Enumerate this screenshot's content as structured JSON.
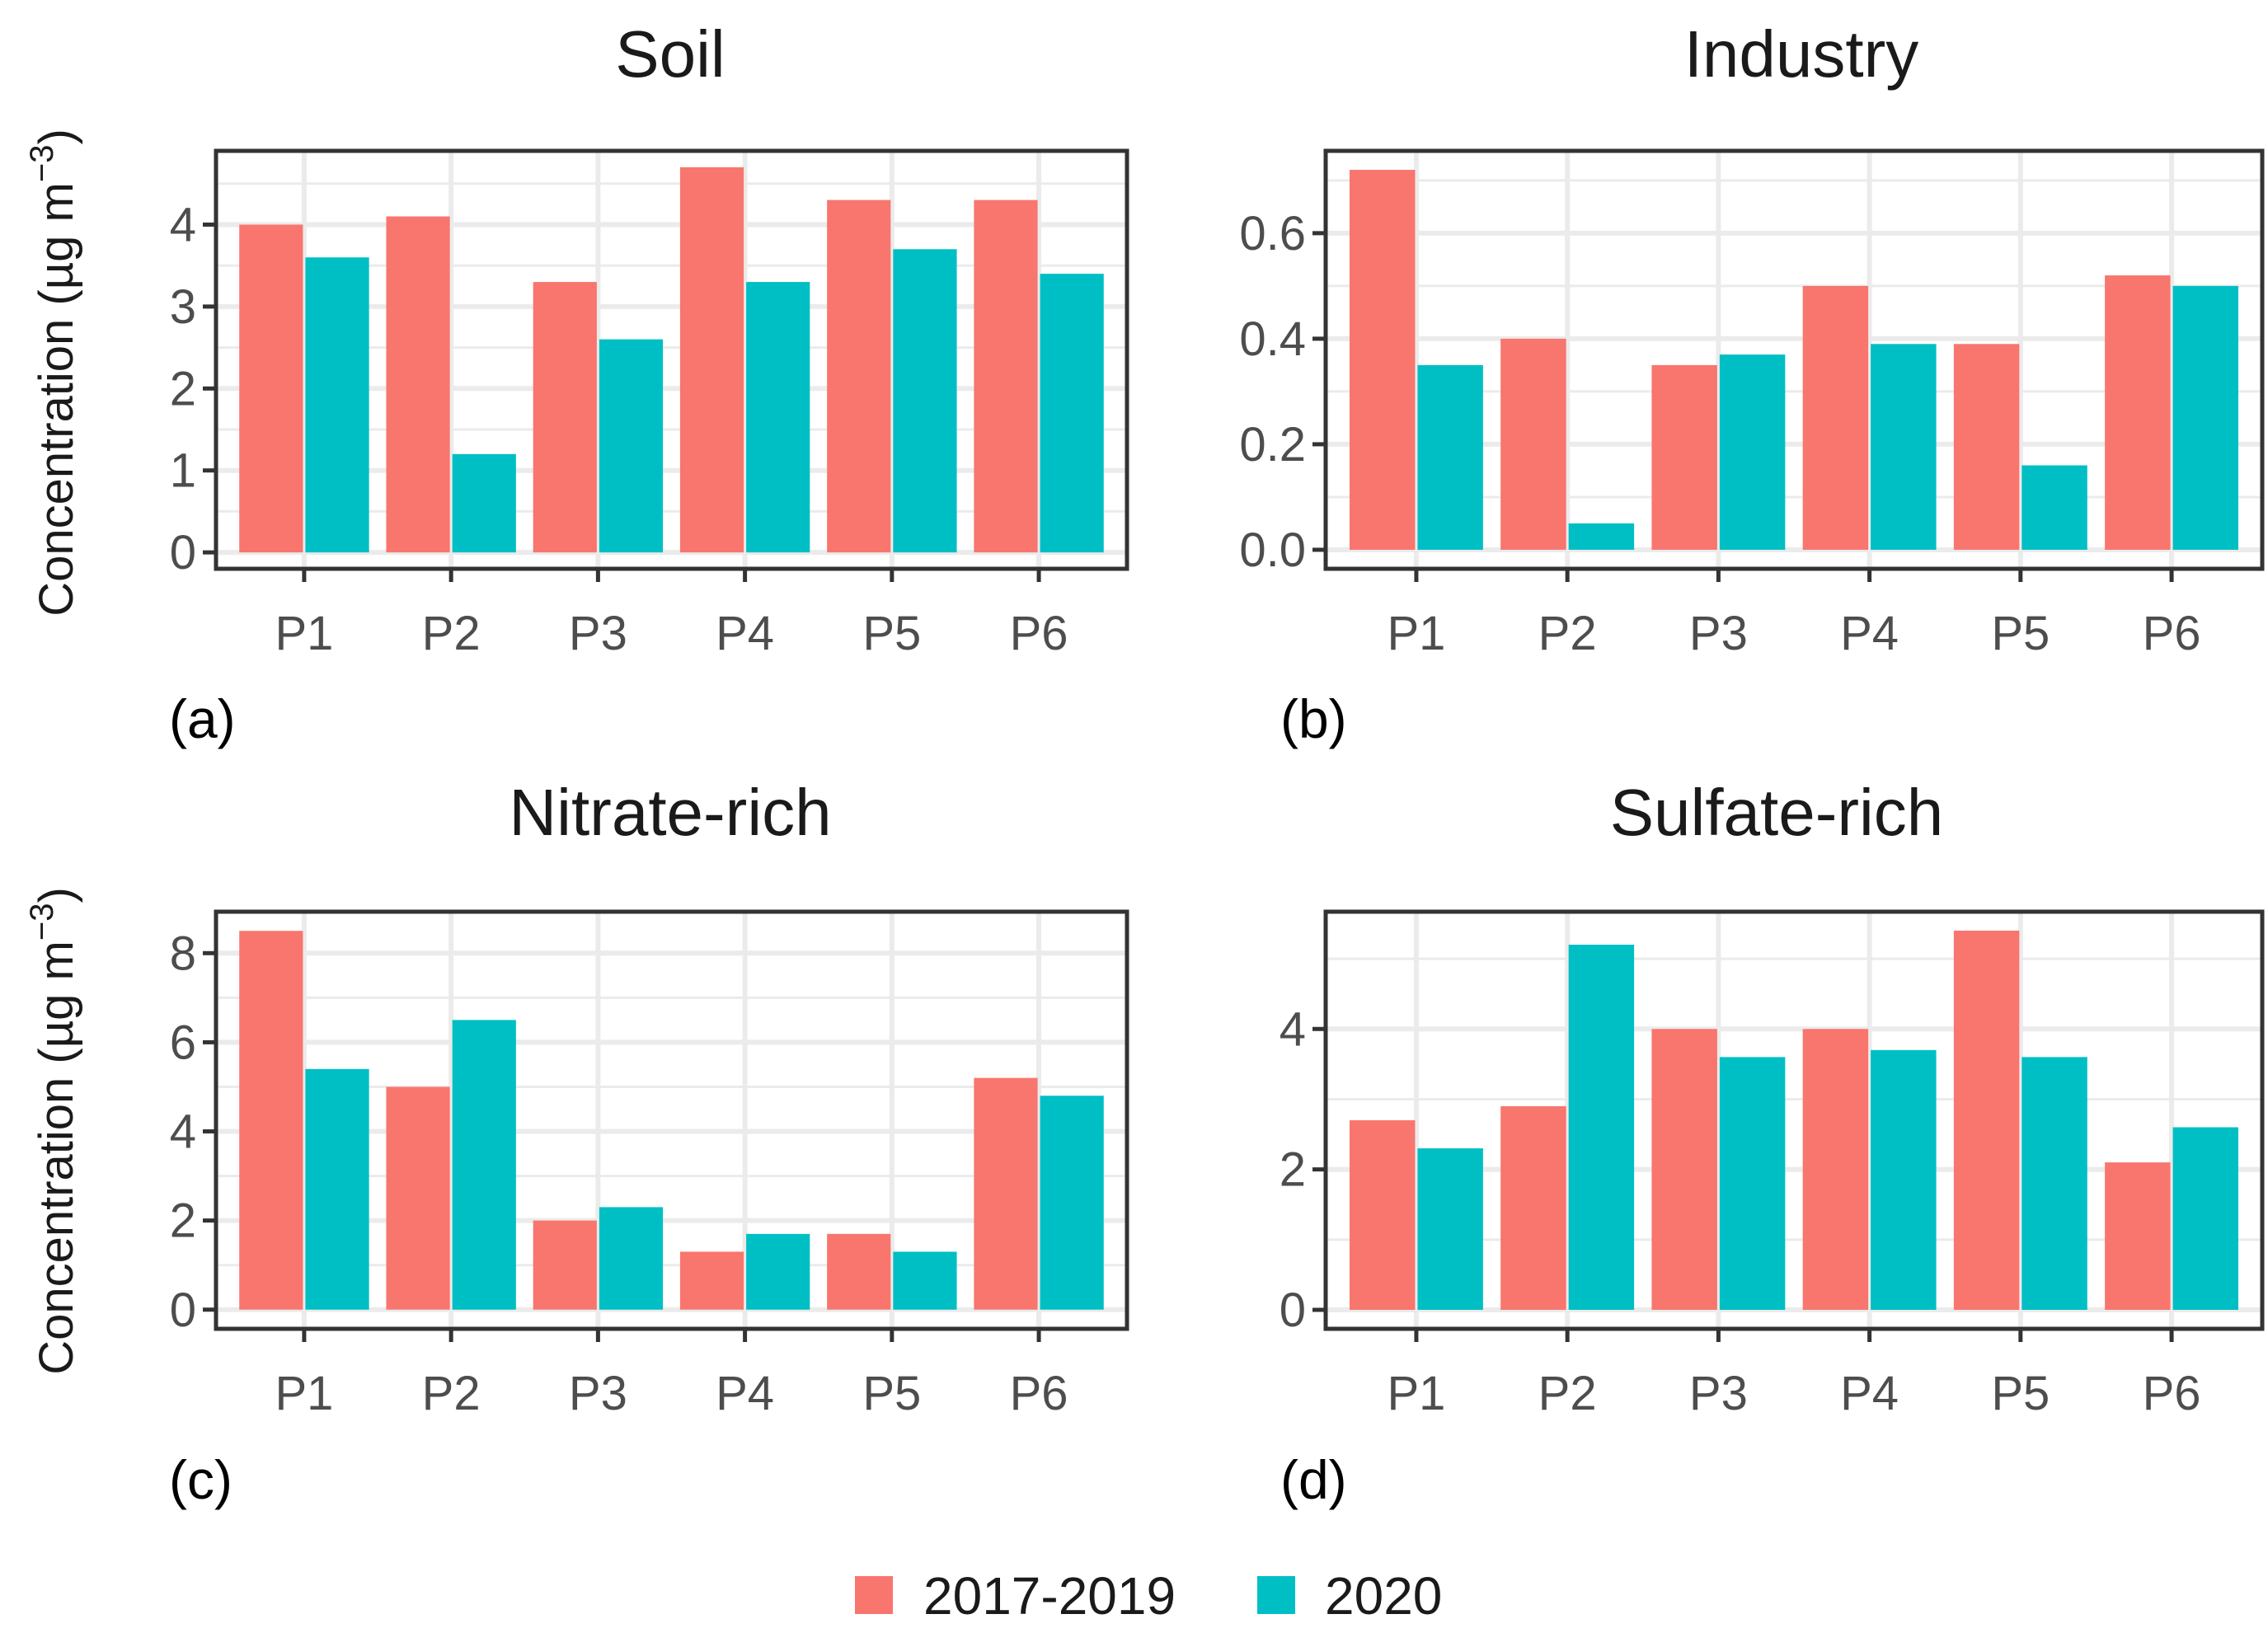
{
  "colors": {
    "series_1": "#F8766D",
    "series_2": "#00BFC4",
    "grid": "#EBEBEB",
    "frame": "#333333",
    "tick": "#333333"
  },
  "legend": {
    "items": [
      {
        "label": "2017-2019"
      },
      {
        "label": "2020"
      }
    ]
  },
  "y_axis_label": {
    "main": "Concentration (µg m",
    "sup": "−3",
    "close": ")"
  },
  "chart_data": [
    {
      "type": "bar",
      "title": "Soil",
      "tag": "(a)",
      "categories": [
        "P1",
        "P2",
        "P3",
        "P4",
        "P5",
        "P6"
      ],
      "series": [
        {
          "name": "2017-2019",
          "values": [
            4.0,
            4.1,
            3.3,
            4.7,
            4.3,
            4.3
          ]
        },
        {
          "name": "2020",
          "values": [
            3.6,
            1.2,
            2.6,
            3.3,
            3.7,
            3.4
          ]
        }
      ],
      "ylim": [
        -0.2,
        4.9
      ],
      "ticks": [
        0,
        1,
        2,
        3,
        4
      ],
      "tick_labels": [
        "0",
        "1",
        "2",
        "3",
        "4"
      ],
      "minor": [
        0.5,
        1.5,
        2.5,
        3.5,
        4.5
      ],
      "ylabel": "Concentration (µg m⁻³)"
    },
    {
      "type": "bar",
      "title": "Industry",
      "tag": "(b)",
      "categories": [
        "P1",
        "P2",
        "P3",
        "P4",
        "P5",
        "P6"
      ],
      "series": [
        {
          "name": "2017-2019",
          "values": [
            0.72,
            0.4,
            0.35,
            0.5,
            0.39,
            0.52
          ]
        },
        {
          "name": "2020",
          "values": [
            0.35,
            0.05,
            0.37,
            0.39,
            0.16,
            0.5
          ]
        }
      ],
      "ylim": [
        -0.036,
        0.756
      ],
      "ticks": [
        0.0,
        0.2,
        0.4,
        0.6
      ],
      "tick_labels": [
        "0.0",
        "0.2",
        "0.4",
        "0.6"
      ],
      "minor": [
        0.1,
        0.3,
        0.5,
        0.7
      ],
      "ylabel": ""
    },
    {
      "type": "bar",
      "title": "Nitrate-rich",
      "tag": "(c)",
      "categories": [
        "P1",
        "P2",
        "P3",
        "P4",
        "P5",
        "P6"
      ],
      "series": [
        {
          "name": "2017-2019",
          "values": [
            8.5,
            5.0,
            2.0,
            1.3,
            1.7,
            5.2
          ]
        },
        {
          "name": "2020",
          "values": [
            5.4,
            6.5,
            2.3,
            1.7,
            1.3,
            4.8
          ]
        }
      ],
      "ylim": [
        -0.43,
        8.93
      ],
      "ticks": [
        0,
        2,
        4,
        6,
        8
      ],
      "tick_labels": [
        "0",
        "2",
        "4",
        "6",
        "8"
      ],
      "minor": [
        1,
        3,
        5,
        7
      ],
      "ylabel": "Concentration (µg m⁻³)"
    },
    {
      "type": "bar",
      "title": "Sulfate-rich",
      "tag": "(d)",
      "categories": [
        "P1",
        "P2",
        "P3",
        "P4",
        "P5",
        "P6"
      ],
      "series": [
        {
          "name": "2017-2019",
          "values": [
            2.7,
            2.9,
            4.0,
            4.0,
            5.4,
            2.1
          ]
        },
        {
          "name": "2020",
          "values": [
            2.3,
            5.2,
            3.6,
            3.7,
            3.6,
            2.6
          ]
        }
      ],
      "ylim": [
        -0.27,
        5.67
      ],
      "ticks": [
        0,
        2,
        4
      ],
      "tick_labels": [
        "0",
        "2",
        "4"
      ],
      "minor": [
        1,
        3,
        5
      ],
      "ylabel": ""
    }
  ]
}
